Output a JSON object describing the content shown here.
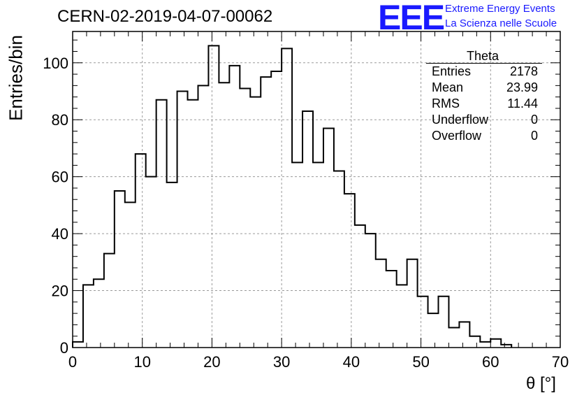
{
  "title": "CERN-02-2019-04-07-00062",
  "logo": {
    "mark": "EEE",
    "line1": "Extreme Energy Events",
    "line2": "La Scienza nelle Scuole"
  },
  "stats_box": {
    "name": "Theta",
    "rows": [
      {
        "key": "Entries",
        "value": "2178"
      },
      {
        "key": "Mean",
        "value": "23.99"
      },
      {
        "key": "RMS",
        "value": "11.44"
      },
      {
        "key": "Underflow",
        "value": "0"
      },
      {
        "key": "Overflow",
        "value": "0"
      }
    ]
  },
  "chart_data": {
    "type": "histogram",
    "title": "CERN-02-2019-04-07-00062",
    "xlabel": "θ [°]",
    "ylabel": "Entries/bin",
    "xlim": [
      0,
      70
    ],
    "ylim": [
      0,
      111
    ],
    "x_ticks": [
      0,
      10,
      20,
      30,
      40,
      50,
      60,
      70
    ],
    "y_ticks": [
      0,
      20,
      40,
      60,
      80,
      100
    ],
    "grid": true,
    "bin_width": 1.5,
    "bin_edges_start": 0,
    "values": [
      2,
      22,
      24,
      33,
      55,
      51,
      68,
      60,
      87,
      58,
      90,
      87,
      92,
      106,
      93,
      99,
      91,
      88,
      95,
      97,
      105,
      65,
      83,
      65,
      77,
      62,
      54,
      43,
      40,
      31,
      27,
      22,
      31,
      18,
      12,
      18,
      7,
      9,
      4,
      2,
      3,
      1
    ]
  }
}
